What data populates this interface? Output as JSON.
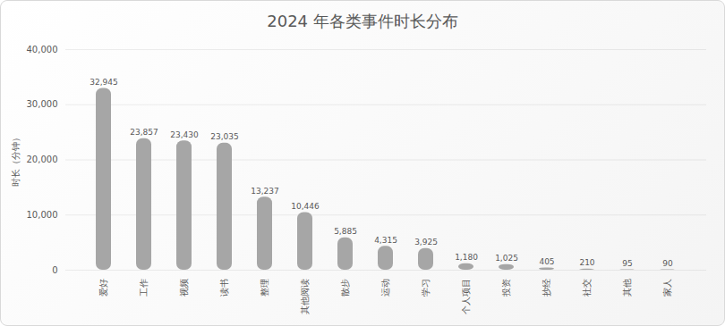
{
  "chart_data": {
    "type": "bar",
    "title": "2024 年各类事件时长分布",
    "y_label": "时长（分钟）",
    "categories": [
      "爱好",
      "工作",
      "视频",
      "读书",
      "整理",
      "其他阅读",
      "散步",
      "运动",
      "学习",
      "个人项目",
      "投资",
      "抄经",
      "社交",
      "其他",
      "家人"
    ],
    "values": [
      32945,
      23857,
      23430,
      23035,
      13237,
      10446,
      5885,
      4315,
      3925,
      1180,
      1025,
      405,
      210,
      95,
      90
    ],
    "value_labels": [
      "32,945",
      "23,857",
      "23,430",
      "23,035",
      "13,237",
      "10,446",
      "5,885",
      "4,315",
      "3,925",
      "1,180",
      "1,025",
      "405",
      "210",
      "95",
      "90"
    ],
    "color": "#a6a6a6",
    "ylim": [
      0,
      40000
    ],
    "yticks": [
      0,
      {
        "value": 10000,
        "label": "10,000"
      },
      {
        "value": 20000,
        "label": "20,000"
      },
      {
        "value": 30000,
        "label": "30,000"
      },
      {
        "value": 40000,
        "label": "40,000"
      }
    ],
    "grid": true,
    "data_labels": true
  }
}
